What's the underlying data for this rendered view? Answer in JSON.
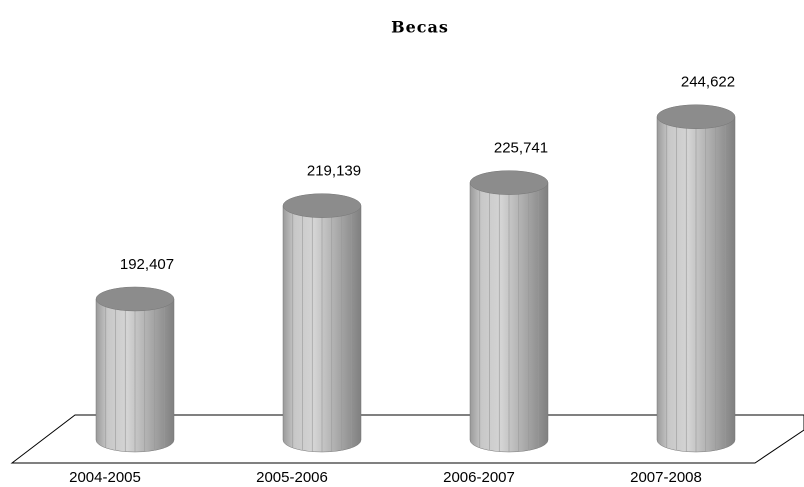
{
  "chart_data": {
    "type": "cylinder",
    "title": "Becas",
    "categories": [
      "2004-2005",
      "2005-2006",
      "2006-2007",
      "2007-2008"
    ],
    "values": [
      192407,
      219139,
      225741,
      244622
    ],
    "value_labels": [
      "192,407",
      "219,139",
      "225,741",
      "244,622"
    ],
    "color": "#b4b4b4",
    "ylim": [
      152000,
      252000
    ]
  }
}
